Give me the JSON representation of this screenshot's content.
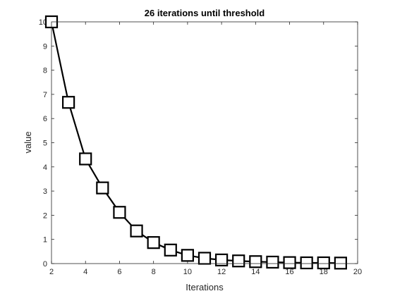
{
  "chart_data": {
    "type": "line",
    "title": "26 iterations until threshold",
    "xlabel": "Iterations",
    "ylabel": "value",
    "xlim": [
      2,
      20
    ],
    "ylim": [
      0,
      10
    ],
    "xticks": [
      2,
      4,
      6,
      8,
      10,
      12,
      14,
      16,
      18,
      20
    ],
    "yticks": [
      0,
      1,
      2,
      3,
      4,
      5,
      6,
      7,
      8,
      9,
      10
    ],
    "grid": false,
    "series": [
      {
        "marker": "square",
        "color": "#000000",
        "x": [
          2,
          3,
          4,
          5,
          6,
          7,
          8,
          9,
          10,
          11,
          12,
          13,
          14,
          15,
          16,
          17,
          18,
          19
        ],
        "y": [
          10,
          6.67,
          4.33,
          3.13,
          2.12,
          1.35,
          0.87,
          0.56,
          0.34,
          0.22,
          0.15,
          0.11,
          0.08,
          0.06,
          0.04,
          0.03,
          0.03,
          0.02
        ]
      }
    ]
  }
}
